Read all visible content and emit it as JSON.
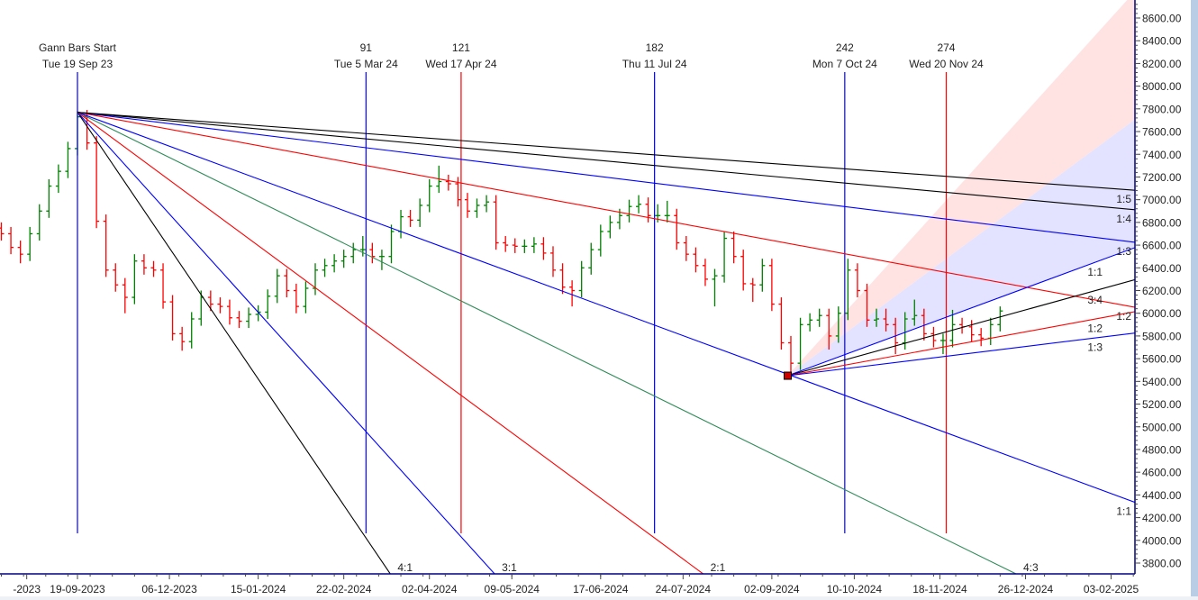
{
  "chart_data": {
    "type": "ohlc",
    "title": "",
    "y_axis": {
      "min": 3800,
      "max": 8600,
      "step": 200,
      "side": "right",
      "decimals": 2
    },
    "x_axis": {
      "ticks": [
        {
          "label": "-2023",
          "bar": -16
        },
        {
          "label": "19-09-2023",
          "bar": 0
        },
        {
          "label": "06-12-2023",
          "bar": 29
        },
        {
          "label": "15-01-2024",
          "bar": 57
        },
        {
          "label": "22-02-2024",
          "bar": 84
        },
        {
          "label": "02-04-2024",
          "bar": 111
        },
        {
          "label": "09-05-2024",
          "bar": 137
        },
        {
          "label": "17-06-2024",
          "bar": 165
        },
        {
          "label": "24-07-2024",
          "bar": 191
        },
        {
          "label": "02-09-2024",
          "bar": 219
        },
        {
          "label": "10-10-2024",
          "bar": 245
        },
        {
          "label": "18-11-2024",
          "bar": 272
        },
        {
          "label": "26-12-2024",
          "bar": 299
        },
        {
          "label": "03-02-2025",
          "bar": 326
        }
      ]
    },
    "colors": {
      "up": "#008000",
      "down": "#ff0000",
      "axis": "#000080",
      "pink_zone": "#ffe3e3",
      "blue_zone": "#e3e3ff",
      "strip": "#b9cde4"
    },
    "price_bars": {
      "bar_start": -24,
      "bar_step": 3,
      "ohlc": [
        [
          6750,
          6800,
          6640,
          6700
        ],
        [
          6700,
          6760,
          6520,
          6580
        ],
        [
          6580,
          6640,
          6440,
          6520
        ],
        [
          6520,
          6760,
          6460,
          6700
        ],
        [
          6700,
          6960,
          6640,
          6900
        ],
        [
          6900,
          7180,
          6840,
          7120
        ],
        [
          7120,
          7310,
          7060,
          7250
        ],
        [
          7250,
          7510,
          7190,
          7450
        ],
        [
          7450,
          7780,
          7390,
          7730
        ],
        [
          7730,
          7790,
          7440,
          7500
        ],
        [
          7500,
          7560,
          6750,
          6810
        ],
        [
          6810,
          6870,
          6320,
          6380
        ],
        [
          6380,
          6440,
          6190,
          6250
        ],
        [
          6250,
          6310,
          6000,
          6140
        ],
        [
          6140,
          6520,
          6080,
          6460
        ],
        [
          6460,
          6520,
          6340,
          6400
        ],
        [
          6400,
          6460,
          6320,
          6380
        ],
        [
          6380,
          6440,
          6040,
          6100
        ],
        [
          6100,
          6160,
          5760,
          5820
        ],
        [
          5820,
          5880,
          5670,
          5750
        ],
        [
          5750,
          6010,
          5690,
          5950
        ],
        [
          5950,
          6200,
          5890,
          6140
        ],
        [
          6140,
          6200,
          6020,
          6080
        ],
        [
          6080,
          6140,
          6000,
          6060
        ],
        [
          6060,
          6120,
          5900,
          5960
        ],
        [
          5960,
          6020,
          5870,
          5930
        ],
        [
          5930,
          6050,
          5870,
          5990
        ],
        [
          5990,
          6070,
          5930,
          6010
        ],
        [
          6010,
          6210,
          5950,
          6150
        ],
        [
          6150,
          6390,
          6090,
          6330
        ],
        [
          6330,
          6390,
          6140,
          6200
        ],
        [
          6200,
          6260,
          6000,
          6060
        ],
        [
          6060,
          6280,
          6000,
          6220
        ],
        [
          6220,
          6440,
          6160,
          6380
        ],
        [
          6380,
          6480,
          6320,
          6420
        ],
        [
          6420,
          6520,
          6360,
          6460
        ],
        [
          6460,
          6560,
          6400,
          6500
        ],
        [
          6500,
          6620,
          6440,
          6560
        ],
        [
          6560,
          6680,
          6500,
          6560
        ],
        [
          6560,
          6620,
          6440,
          6500
        ],
        [
          6500,
          6560,
          6380,
          6500
        ],
        [
          6500,
          6780,
          6440,
          6720
        ],
        [
          6720,
          6910,
          6660,
          6850
        ],
        [
          6850,
          6910,
          6760,
          6820
        ],
        [
          6820,
          7010,
          6760,
          6950
        ],
        [
          6950,
          7180,
          6890,
          7120
        ],
        [
          7120,
          7300,
          7060,
          7160
        ],
        [
          7160,
          7220,
          7080,
          7140
        ],
        [
          7140,
          7200,
          6940,
          7000
        ],
        [
          7000,
          7060,
          6840,
          6900
        ],
        [
          6900,
          7010,
          6840,
          6950
        ],
        [
          6950,
          7040,
          6890,
          6980
        ],
        [
          6980,
          7040,
          6560,
          6620
        ],
        [
          6620,
          6680,
          6540,
          6600
        ],
        [
          6600,
          6660,
          6530,
          6590
        ],
        [
          6590,
          6650,
          6530,
          6590
        ],
        [
          6590,
          6670,
          6530,
          6610
        ],
        [
          6610,
          6670,
          6470,
          6530
        ],
        [
          6530,
          6590,
          6320,
          6380
        ],
        [
          6380,
          6440,
          6170,
          6230
        ],
        [
          6230,
          6290,
          6060,
          6200
        ],
        [
          6200,
          6460,
          6140,
          6400
        ],
        [
          6400,
          6620,
          6340,
          6560
        ],
        [
          6560,
          6780,
          6500,
          6720
        ],
        [
          6720,
          6860,
          6660,
          6800
        ],
        [
          6800,
          6920,
          6740,
          6860
        ],
        [
          6860,
          7000,
          6800,
          6940
        ],
        [
          6940,
          7040,
          6880,
          6960
        ],
        [
          6960,
          7020,
          6800,
          6860
        ],
        [
          6860,
          6960,
          6800,
          6860
        ],
        [
          6860,
          6990,
          6800,
          6860
        ],
        [
          6860,
          6920,
          6560,
          6620
        ],
        [
          6620,
          6680,
          6460,
          6520
        ],
        [
          6520,
          6580,
          6360,
          6420
        ],
        [
          6420,
          6480,
          6240,
          6300
        ],
        [
          6300,
          6390,
          6060,
          6330
        ],
        [
          6330,
          6720,
          6270,
          6660
        ],
        [
          6660,
          6720,
          6440,
          6500
        ],
        [
          6500,
          6560,
          6200,
          6260
        ],
        [
          6260,
          6310,
          6100,
          6250
        ],
        [
          6250,
          6480,
          6190,
          6420
        ],
        [
          6420,
          6480,
          6020,
          6080
        ],
        [
          6080,
          6140,
          5680,
          5740
        ],
        [
          5740,
          5800,
          5450,
          5560
        ],
        [
          5560,
          5960,
          5500,
          5900
        ],
        [
          5900,
          6000,
          5840,
          5940
        ],
        [
          5940,
          6040,
          5880,
          5980
        ],
        [
          5980,
          6040,
          5680,
          5800
        ],
        [
          5800,
          6060,
          5740,
          6000
        ],
        [
          6000,
          6480,
          5940,
          6380
        ],
        [
          6380,
          6440,
          6140,
          6200
        ],
        [
          6200,
          6260,
          5880,
          5940
        ],
        [
          5940,
          6040,
          5880,
          5950
        ],
        [
          5950,
          6040,
          5840,
          5900
        ],
        [
          5900,
          5960,
          5640,
          5740
        ],
        [
          5740,
          6010,
          5680,
          5950
        ],
        [
          5950,
          6120,
          5890,
          5980
        ],
        [
          5980,
          6040,
          5760,
          5820
        ],
        [
          5820,
          5880,
          5700,
          5760
        ],
        [
          5760,
          5820,
          5640,
          5760
        ],
        [
          5760,
          6030,
          5700,
          5900
        ],
        [
          5900,
          5960,
          5820,
          5880
        ],
        [
          5880,
          5940,
          5750,
          5810
        ],
        [
          5810,
          5870,
          5710,
          5780
        ],
        [
          5780,
          5960,
          5720,
          5900
        ],
        [
          5900,
          6060,
          5840,
          6020
        ]
      ]
    },
    "gann_markers": [
      {
        "number": "Gann Bars Start",
        "date": "Tue 19 Sep 23",
        "bar": 0,
        "color": "#0000ff"
      },
      {
        "number": "91",
        "date": "Tue 5 Mar 24",
        "bar": 91,
        "color": "#0000ff"
      },
      {
        "number": "121",
        "date": "Wed 17 Apr 24",
        "bar": 121,
        "color": "#ff0000"
      },
      {
        "number": "182",
        "date": "Thu 11 Jul 24",
        "bar": 182,
        "color": "#0000ff"
      },
      {
        "number": "242",
        "date": "Mon 7 Oct 24",
        "bar": 242,
        "color": "#0000ff"
      },
      {
        "number": "274",
        "date": "Wed 20 Nov 24",
        "bar": 274,
        "color": "#ff0000"
      }
    ],
    "gann_fans": [
      {
        "origin_bar": 0,
        "origin_price": 7770,
        "direction": "down",
        "points_per_bar": 10.3,
        "lines": [
          {
            "label": "4:1",
            "ratio": 4,
            "color": "#000000"
          },
          {
            "label": "3:1",
            "ratio": 3,
            "color": "#0000ff"
          },
          {
            "label": "2:1",
            "ratio": 2,
            "color": "#ff0000"
          },
          {
            "label": "4:3",
            "ratio": 1.3333,
            "color": "#2e8b57"
          },
          {
            "label": "1:1",
            "ratio": 1,
            "color": "#0000ff"
          },
          {
            "label": "1:2",
            "ratio": 0.5,
            "color": "#ff0000"
          },
          {
            "label": "1:3",
            "ratio": 0.3333,
            "color": "#0000ff"
          },
          {
            "label": "1:4",
            "ratio": 0.25,
            "color": "#000000"
          },
          {
            "label": "1:5",
            "ratio": 0.2,
            "color": "#000000"
          }
        ]
      },
      {
        "origin_bar": 224,
        "origin_price": 5450,
        "direction": "up",
        "points_per_bar": 10.3,
        "zones": [
          {
            "from_ratio": 2,
            "to_ratio": 3,
            "color": "#ffe3e3"
          },
          {
            "from_ratio": 1,
            "to_ratio": 2,
            "color": "#e3e3ff"
          }
        ],
        "lines": [
          {
            "label": "1:1",
            "ratio": 1,
            "color": "#0000ff"
          },
          {
            "label": "3:4",
            "ratio": 0.75,
            "color": "#000000"
          },
          {
            "label": "1:2",
            "ratio": 0.5,
            "color": "#ff0000"
          },
          {
            "label": "1:3",
            "ratio": 0.3333,
            "color": "#0000ff"
          }
        ]
      }
    ]
  }
}
